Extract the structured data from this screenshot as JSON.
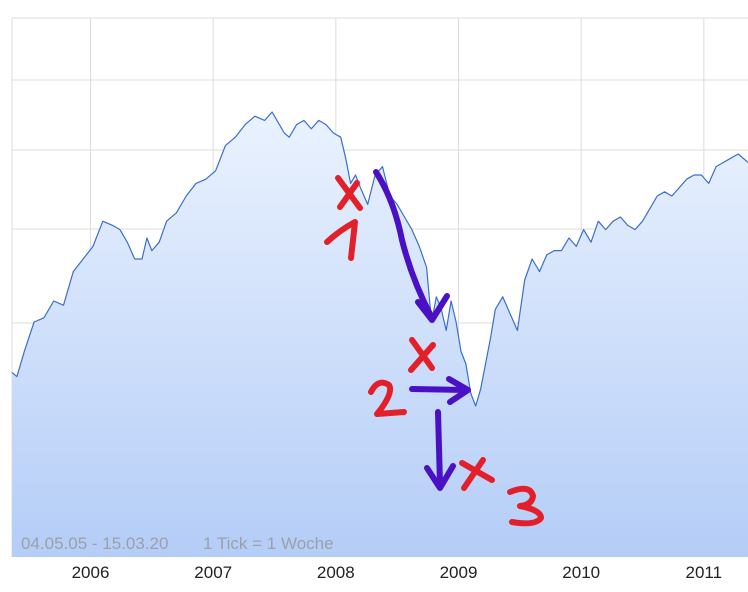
{
  "chart_data": {
    "type": "area",
    "title": "",
    "xlabel": "",
    "ylabel": "",
    "x_ticks": [
      "2006",
      "2007",
      "2008",
      "2009",
      "2010",
      "2011"
    ],
    "x_tick_values": [
      2006,
      2007,
      2008,
      2009,
      2010,
      2011
    ],
    "xlim": [
      2005.36,
      2011.36
    ],
    "ylim": [
      0,
      100
    ],
    "y_tick_labels_shown": false,
    "grid": true,
    "range_label": "04.05.05 - 15.03.20",
    "tick_label": "1 Tick = 1 Woche",
    "series": [
      {
        "x": [
          2005.36,
          2005.4,
          2005.46,
          2005.54,
          2005.62,
          2005.7,
          2005.78,
          2005.86,
          2005.94,
          2006.02,
          2006.1,
          2006.18,
          2006.24,
          2006.3,
          2006.36,
          2006.42,
          2006.46,
          2006.5,
          2006.56,
          2006.62,
          2006.7,
          2006.78,
          2006.86,
          2006.94,
          2007.02,
          2007.1,
          2007.18,
          2007.26,
          2007.34,
          2007.42,
          2007.48,
          2007.54,
          2007.58,
          2007.62,
          2007.68,
          2007.74,
          2007.8,
          2007.86,
          2007.92,
          2007.98,
          2008.04,
          2008.08,
          2008.12,
          2008.16,
          2008.2,
          2008.26,
          2008.32,
          2008.38,
          2008.44,
          2008.5,
          2008.56,
          2008.62,
          2008.68,
          2008.74,
          2008.78,
          2008.82,
          2008.86,
          2008.9,
          2008.94,
          2008.98,
          2009.02,
          2009.06,
          2009.1,
          2009.14,
          2009.18,
          2009.22,
          2009.26,
          2009.3,
          2009.36,
          2009.42,
          2009.48,
          2009.54,
          2009.6,
          2009.66,
          2009.72,
          2009.78,
          2009.84,
          2009.9,
          2009.96,
          2010.02,
          2010.08,
          2010.14,
          2010.2,
          2010.26,
          2010.32,
          2010.38,
          2010.44,
          2010.5,
          2010.56,
          2010.62,
          2010.68,
          2010.74,
          2010.8,
          2010.86,
          2010.92,
          2010.98,
          2011.04,
          2011.1,
          2011.16,
          2011.22,
          2011.28,
          2011.36
        ],
        "y": [
          28,
          27,
          33,
          40,
          41,
          45,
          44,
          52,
          55,
          58,
          64,
          63,
          62,
          59,
          55,
          55,
          60,
          57,
          59,
          64,
          66,
          70,
          73,
          74,
          76,
          82,
          84,
          87,
          89,
          88,
          90,
          87,
          85,
          84,
          87,
          88,
          86,
          88,
          87,
          85,
          84,
          79,
          73,
          75,
          72,
          68,
          75,
          77,
          70,
          68,
          65,
          62,
          58,
          53,
          40,
          46,
          43,
          38,
          45,
          40,
          33,
          30,
          23,
          20,
          24,
          30,
          36,
          43,
          46,
          42,
          38,
          50,
          55,
          52,
          56,
          57,
          57,
          60,
          58,
          62,
          59,
          64,
          62,
          64,
          65,
          63,
          62,
          64,
          67,
          70,
          71,
          70,
          72,
          74,
          75,
          75,
          73,
          77,
          78,
          79,
          80,
          78
        ]
      }
    ]
  },
  "annotations": {
    "labels": [
      "1",
      "2",
      "3"
    ]
  },
  "colors": {
    "line": "#3a6fc9",
    "fill_top": "#eaf2fe",
    "fill_bottom": "#b4cdf7",
    "marker": "#e3202a",
    "arrow": "#4a10c4",
    "grid": "#dcdcdc"
  }
}
